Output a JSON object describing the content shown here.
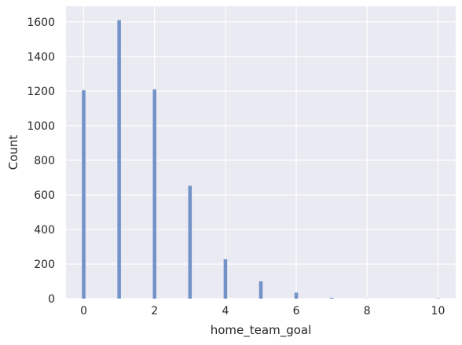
{
  "chart_data": {
    "type": "bar",
    "title": "",
    "xlabel": "home_team_goal",
    "ylabel": "Count",
    "xlim": [
      -0.5,
      10.5
    ],
    "ylim": [
      0,
      1690
    ],
    "x_ticks": [
      "0",
      "2",
      "4",
      "6",
      "8",
      "10"
    ],
    "x_tick_values": [
      0,
      2,
      4,
      6,
      8,
      10
    ],
    "y_ticks": [
      "0",
      "200",
      "400",
      "600",
      "800",
      "1000",
      "1200",
      "1400",
      "1600"
    ],
    "y_tick_values": [
      0,
      200,
      400,
      600,
      800,
      1000,
      1200,
      1400,
      1600
    ],
    "bar_width": 0.1,
    "series": [
      {
        "name": "home_team_goal",
        "color": "#7292c8",
        "x": [
          0,
          1,
          2,
          3,
          4,
          5,
          6,
          7,
          8,
          9,
          10
        ],
        "values": [
          1205,
          1610,
          1210,
          652,
          228,
          100,
          35,
          5,
          1,
          0,
          2
        ]
      }
    ],
    "grid": true,
    "background": "#eaeaf2",
    "grid_color": "#ffffff"
  }
}
